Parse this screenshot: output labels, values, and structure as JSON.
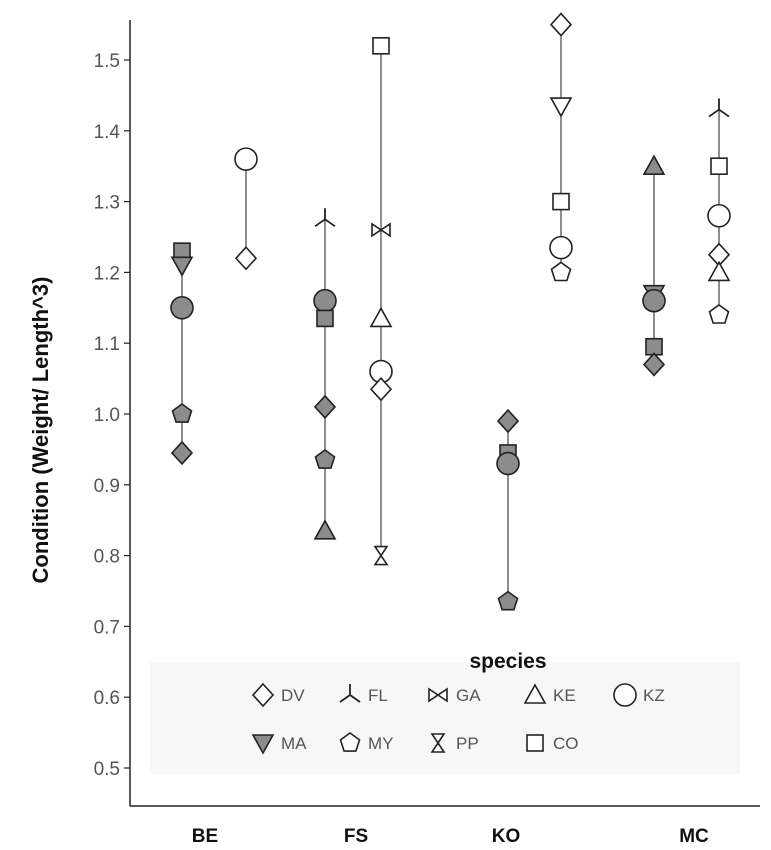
{
  "chart_data": {
    "type": "scatter",
    "ylabel": "Condition (Weight/ Length^3)",
    "xlabel": "",
    "ylim": [
      0.45,
      1.6
    ],
    "yticks": [
      "0.5",
      "0.6",
      "0.7",
      "0.8",
      "0.9",
      "1.0",
      "1.1",
      "1.2",
      "1.3",
      "1.4",
      "1.5"
    ],
    "categories": [
      "BE",
      "FS",
      "KO",
      "MC"
    ],
    "legend": {
      "title": "species",
      "placement": "bottom-center",
      "entries": [
        {
          "key": "DV",
          "label": "DV",
          "marker": "diamond",
          "fill": "open"
        },
        {
          "key": "FL",
          "label": "FL",
          "marker": "tri-star",
          "fill": "open"
        },
        {
          "key": "GA",
          "label": "GA",
          "marker": "bowtie",
          "fill": "open"
        },
        {
          "key": "KE",
          "label": "KE",
          "marker": "triangle-up",
          "fill": "open"
        },
        {
          "key": "KZ",
          "label": "KZ",
          "marker": "circle",
          "fill": "open"
        },
        {
          "key": "MA",
          "label": "MA",
          "marker": "triangle-down",
          "fill": "filled"
        },
        {
          "key": "MY",
          "label": "MY",
          "marker": "pentagon",
          "fill": "open"
        },
        {
          "key": "PP",
          "label": "PP",
          "marker": "hourglass",
          "fill": "open"
        },
        {
          "key": "CO",
          "label": "CO",
          "marker": "square",
          "fill": "open"
        }
      ]
    },
    "colors": {
      "filled": "#8c8c8c",
      "open": "#ffffff",
      "stroke": "#222222",
      "line": "#444444"
    },
    "groups": [
      {
        "category": "BE",
        "slot": "left",
        "fill": "filled",
        "points": [
          {
            "species": "CO",
            "y": 1.23
          },
          {
            "species": "MA",
            "y": 1.21
          },
          {
            "species": "KZ",
            "y": 1.15
          },
          {
            "species": "MY",
            "y": 1.0
          },
          {
            "species": "DV",
            "y": 0.945
          }
        ]
      },
      {
        "category": "BE",
        "slot": "right",
        "fill": "open",
        "points": [
          {
            "species": "KZ",
            "y": 1.36
          },
          {
            "species": "DV",
            "y": 1.22
          }
        ]
      },
      {
        "category": "FS",
        "slot": "left",
        "fill": "filled",
        "points": [
          {
            "species": "FL",
            "y": 1.275
          },
          {
            "species": "KZ",
            "y": 1.16
          },
          {
            "species": "CO",
            "y": 1.135
          },
          {
            "species": "DV",
            "y": 1.01
          },
          {
            "species": "MY",
            "y": 0.935
          },
          {
            "species": "KE",
            "y": 0.835
          }
        ]
      },
      {
        "category": "FS",
        "slot": "right",
        "fill": "open",
        "points": [
          {
            "species": "CO",
            "y": 1.52
          },
          {
            "species": "GA",
            "y": 1.26
          },
          {
            "species": "KE",
            "y": 1.135
          },
          {
            "species": "KZ",
            "y": 1.06
          },
          {
            "species": "DV",
            "y": 1.035
          },
          {
            "species": "PP",
            "y": 0.8
          }
        ]
      },
      {
        "category": "KO",
        "slot": "left",
        "fill": "filled",
        "points": [
          {
            "species": "DV",
            "y": 0.99
          },
          {
            "species": "CO",
            "y": 0.945
          },
          {
            "species": "KZ",
            "y": 0.93
          },
          {
            "species": "MY",
            "y": 0.735
          }
        ]
      },
      {
        "category": "KO",
        "slot": "right",
        "fill": "open",
        "points": [
          {
            "species": "DV",
            "y": 1.55
          },
          {
            "species": "MA",
            "y": 1.435
          },
          {
            "species": "CO",
            "y": 1.3
          },
          {
            "species": "KZ",
            "y": 1.235
          },
          {
            "species": "MY",
            "y": 1.2
          }
        ]
      },
      {
        "category": "MC",
        "slot": "left",
        "fill": "filled",
        "points": [
          {
            "species": "KE",
            "y": 1.35
          },
          {
            "species": "MA",
            "y": 1.17
          },
          {
            "species": "KZ",
            "y": 1.16
          },
          {
            "species": "CO",
            "y": 1.095
          },
          {
            "species": "DV",
            "y": 1.07
          }
        ]
      },
      {
        "category": "MC",
        "slot": "right",
        "fill": "open",
        "points": [
          {
            "species": "FL",
            "y": 1.43
          },
          {
            "species": "CO",
            "y": 1.35
          },
          {
            "species": "KZ",
            "y": 1.28
          },
          {
            "species": "DV",
            "y": 1.225
          },
          {
            "species": "KE",
            "y": 1.2
          },
          {
            "species": "MY",
            "y": 1.14
          }
        ]
      }
    ]
  }
}
